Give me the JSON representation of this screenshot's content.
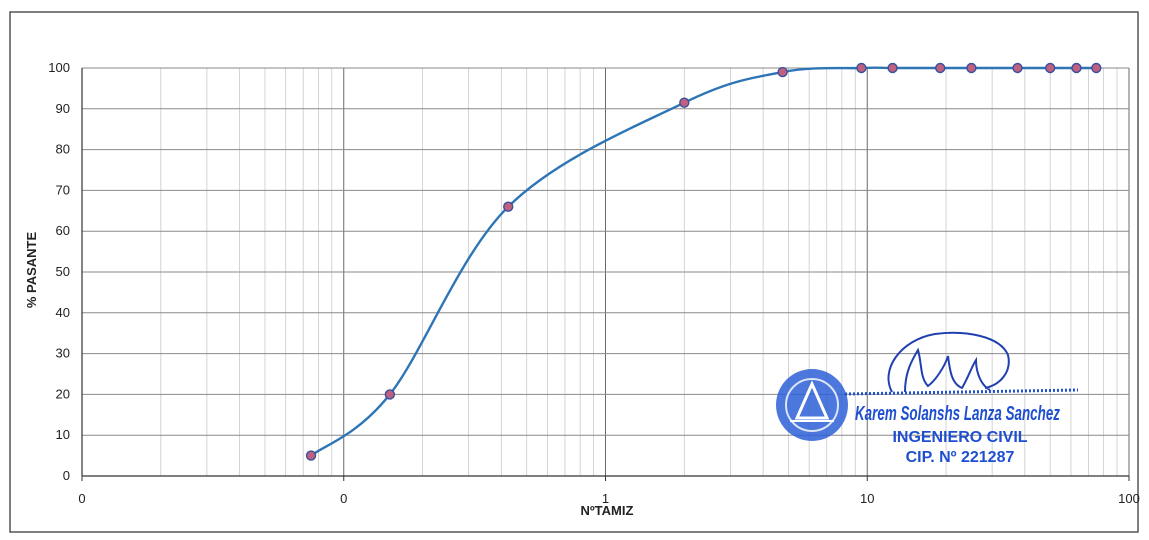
{
  "chart_data": {
    "type": "line",
    "title": "",
    "xlabel": "NºTAMIZ",
    "ylabel": "% PASANTE",
    "x_scale": "log",
    "x_tick_labels": [
      "0",
      "0",
      "1",
      "10",
      "100"
    ],
    "y_ticks": [
      0,
      10,
      20,
      30,
      40,
      50,
      60,
      70,
      80,
      90,
      100
    ],
    "ylim": [
      0,
      100
    ],
    "grid": true,
    "legend": "none",
    "series": [
      {
        "color": "#2e75b6",
        "marker_color": "#c06080",
        "points": [
          {
            "x": 0.075,
            "y": 5
          },
          {
            "x": 0.15,
            "y": 20
          },
          {
            "x": 0.425,
            "y": 66
          },
          {
            "x": 2.0,
            "y": 91.5
          },
          {
            "x": 4.75,
            "y": 99
          },
          {
            "x": 9.5,
            "y": 100
          },
          {
            "x": 12.5,
            "y": 100
          },
          {
            "x": 19.0,
            "y": 100
          },
          {
            "x": 25.0,
            "y": 100
          },
          {
            "x": 37.5,
            "y": 100
          },
          {
            "x": 50.0,
            "y": 100
          },
          {
            "x": 63.0,
            "y": 100
          },
          {
            "x": 75.0,
            "y": 100
          }
        ]
      }
    ]
  },
  "stamp": {
    "name": "Karem Solanshs Lanza Sanchez",
    "profession": "INGENIERO CIVIL",
    "registration": "CIP. Nº 221287",
    "color": "#1f4fd1"
  }
}
